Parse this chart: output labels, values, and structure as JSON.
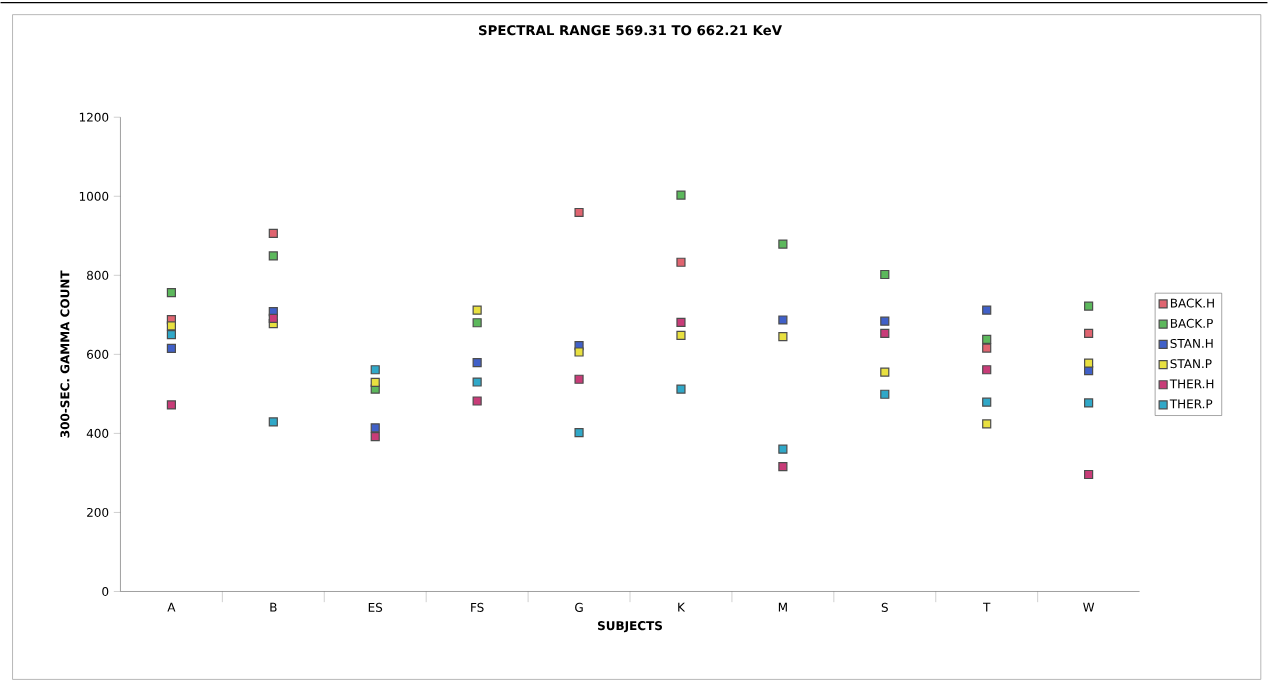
{
  "chart_data": {
    "type": "scatter",
    "title": "SPECTRAL RANGE 569.31 TO 662.21 KeV",
    "xlabel": "SUBJECTS",
    "ylabel": "300-SEC. GAMMA COUNT",
    "categories": [
      "A",
      "B",
      "ES",
      "FS",
      "G",
      "K",
      "M",
      "S",
      "T",
      "W"
    ],
    "series": [
      {
        "name": "BACK.H",
        "color": "#e06470",
        "values": [
          688,
          906,
          null,
          null,
          959,
          833,
          null,
          null,
          616,
          653
        ]
      },
      {
        "name": "BACK.P",
        "color": "#5cb85c",
        "values": [
          756,
          849,
          512,
          680,
          null,
          1003,
          879,
          802,
          638,
          722
        ]
      },
      {
        "name": "STAN.H",
        "color": "#4060c8",
        "values": [
          615,
          708,
          414,
          579,
          622,
          null,
          687,
          684,
          712,
          559
        ]
      },
      {
        "name": "STAN.P",
        "color": "#e8e040",
        "values": [
          672,
          678,
          529,
          712,
          606,
          648,
          645,
          555,
          424,
          578
        ]
      },
      {
        "name": "THER.H",
        "color": "#c83c78",
        "values": [
          472,
          691,
          392,
          482,
          537,
          681,
          316,
          653,
          561,
          296
        ]
      },
      {
        "name": "THER.P",
        "color": "#30a8c8",
        "values": [
          650,
          429,
          561,
          530,
          402,
          512,
          360,
          499,
          479,
          477
        ]
      }
    ],
    "ylim": [
      0,
      1200
    ],
    "yticks": [
      0,
      200,
      400,
      600,
      800,
      1000,
      1200
    ],
    "marker": "square",
    "grid": false,
    "legend": "right"
  }
}
